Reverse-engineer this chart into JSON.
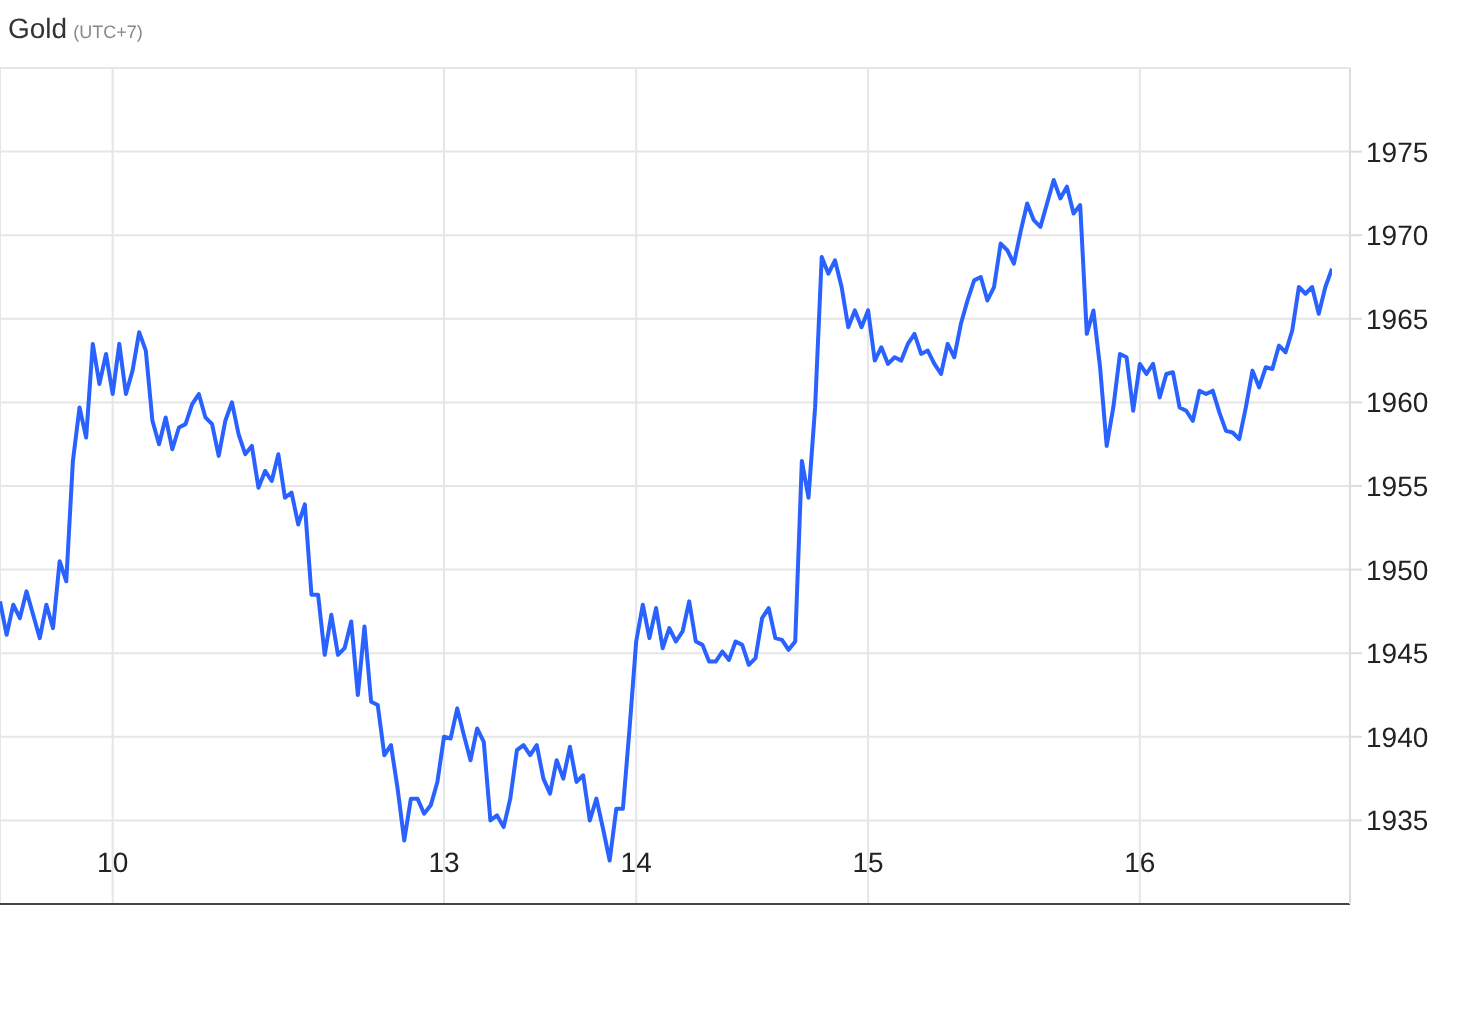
{
  "chart_data": {
    "type": "line",
    "title": "Gold",
    "subtitle": "(UTC+7)",
    "categories": [
      null,
      null,
      null,
      null,
      null,
      null,
      null,
      null,
      null,
      null,
      null,
      null,
      null,
      null,
      null,
      null,
      null,
      "10",
      null,
      null,
      null,
      null,
      null,
      null,
      null,
      null,
      null,
      null,
      null,
      null,
      null,
      null,
      null,
      null,
      null,
      null,
      null,
      null,
      null,
      null,
      null,
      null,
      null,
      null,
      null,
      null,
      null,
      null,
      null,
      null,
      null,
      null,
      null,
      null,
      null,
      null,
      null,
      null,
      null,
      null,
      null,
      null,
      null,
      null,
      null,
      null,
      null,
      "13",
      null,
      null,
      null,
      null,
      null,
      null,
      null,
      null,
      null,
      null,
      null,
      null,
      null,
      null,
      null,
      null,
      null,
      null,
      null,
      null,
      null,
      null,
      null,
      null,
      null,
      null,
      null,
      null,
      "14",
      null,
      null,
      null,
      null,
      null,
      null,
      null,
      null,
      null,
      null,
      null,
      null,
      null,
      null,
      null,
      null,
      null,
      null,
      null,
      null,
      null,
      null,
      null,
      null,
      null,
      null,
      null,
      null,
      null,
      null,
      null,
      null,
      null,
      null,
      "15",
      null,
      null,
      null,
      null,
      null,
      null,
      null,
      null,
      null,
      null,
      null,
      null,
      null,
      null,
      null,
      null,
      null,
      null,
      null,
      null,
      null,
      null,
      null,
      null,
      null,
      null,
      null,
      null,
      null,
      null,
      null,
      null,
      null,
      null,
      null,
      null,
      null,
      null,
      null,
      null,
      "16",
      null,
      null,
      null,
      null,
      null,
      null,
      null,
      null,
      null,
      null,
      null,
      null,
      null,
      null,
      null,
      null,
      null,
      null,
      null,
      null,
      null,
      null,
      null,
      null,
      null,
      null,
      null,
      null,
      null
    ],
    "series": [
      {
        "color": "#2962ff",
        "values": [
          1948.1,
          1946.1,
          1947.9,
          1947.1,
          1948.7,
          1947.3,
          1945.9,
          1947.9,
          1946.5,
          1950.5,
          1949.3,
          1956.5,
          1959.7,
          1957.9,
          1963.5,
          1961.1,
          1962.9,
          1960.5,
          1963.5,
          1960.5,
          1961.9,
          1964.2,
          1963.1,
          1958.9,
          1957.5,
          1959.1,
          1957.2,
          1958.5,
          1958.7,
          1959.9,
          1960.5,
          1959.1,
          1958.7,
          1956.8,
          1958.9,
          1960.0,
          1958.1,
          1956.9,
          1957.4,
          1954.9,
          1955.9,
          1955.3,
          1956.9,
          1954.3,
          1954.6,
          1952.7,
          1953.9,
          1948.5,
          1948.5,
          1944.9,
          1947.3,
          1944.9,
          1945.3,
          1946.9,
          1942.5,
          1946.6,
          1942.1,
          1941.9,
          1938.9,
          1939.5,
          1936.9,
          1933.8,
          1936.3,
          1936.3,
          1935.4,
          1935.9,
          1937.3,
          1940.0,
          1939.9,
          1941.7,
          1940.1,
          1938.6,
          1940.5,
          1939.7,
          1935.0,
          1935.3,
          1934.6,
          1936.3,
          1939.2,
          1939.5,
          1938.9,
          1939.5,
          1937.5,
          1936.6,
          1938.6,
          1937.5,
          1939.4,
          1937.3,
          1937.7,
          1935.0,
          1936.3,
          1934.5,
          1932.6,
          1935.7,
          1935.7,
          1940.5,
          1945.7,
          1947.9,
          1945.9,
          1947.7,
          1945.3,
          1946.5,
          1945.7,
          1946.3,
          1948.1,
          1945.7,
          1945.5,
          1944.5,
          1944.5,
          1945.1,
          1944.6,
          1945.7,
          1945.5,
          1944.3,
          1944.7,
          1947.1,
          1947.7,
          1945.9,
          1945.8,
          1945.2,
          1945.7,
          1956.5,
          1954.3,
          1959.7,
          1968.7,
          1967.7,
          1968.5,
          1966.9,
          1964.5,
          1965.5,
          1964.5,
          1965.5,
          1962.5,
          1963.3,
          1962.3,
          1962.7,
          1962.5,
          1963.5,
          1964.1,
          1962.9,
          1963.1,
          1962.3,
          1961.7,
          1963.5,
          1962.7,
          1964.7,
          1966.1,
          1967.3,
          1967.5,
          1966.1,
          1966.9,
          1969.5,
          1969.1,
          1968.3,
          1970.2,
          1971.9,
          1970.9,
          1970.5,
          1971.9,
          1973.3,
          1972.2,
          1972.9,
          1971.3,
          1971.8,
          1964.1,
          1965.5,
          1962.1,
          1957.4,
          1959.7,
          1962.9,
          1962.7,
          1959.5,
          1962.3,
          1961.7,
          1962.3,
          1960.3,
          1961.7,
          1961.8,
          1959.7,
          1959.5,
          1958.9,
          1960.7,
          1960.5,
          1960.7,
          1959.4,
          1958.3,
          1958.2,
          1957.8,
          1959.7,
          1961.9,
          1960.9,
          1962.1,
          1962.0,
          1963.4,
          1963.0,
          1964.3,
          1966.9,
          1966.5,
          1966.9,
          1965.3,
          1966.9,
          1968.0
        ]
      }
    ],
    "ylim": [
      1930,
      1980
    ],
    "yticks": [
      1935,
      1940,
      1945,
      1950,
      1955,
      1960,
      1965,
      1970,
      1975
    ],
    "grid": true,
    "marker": "none",
    "line_style": "solid"
  }
}
